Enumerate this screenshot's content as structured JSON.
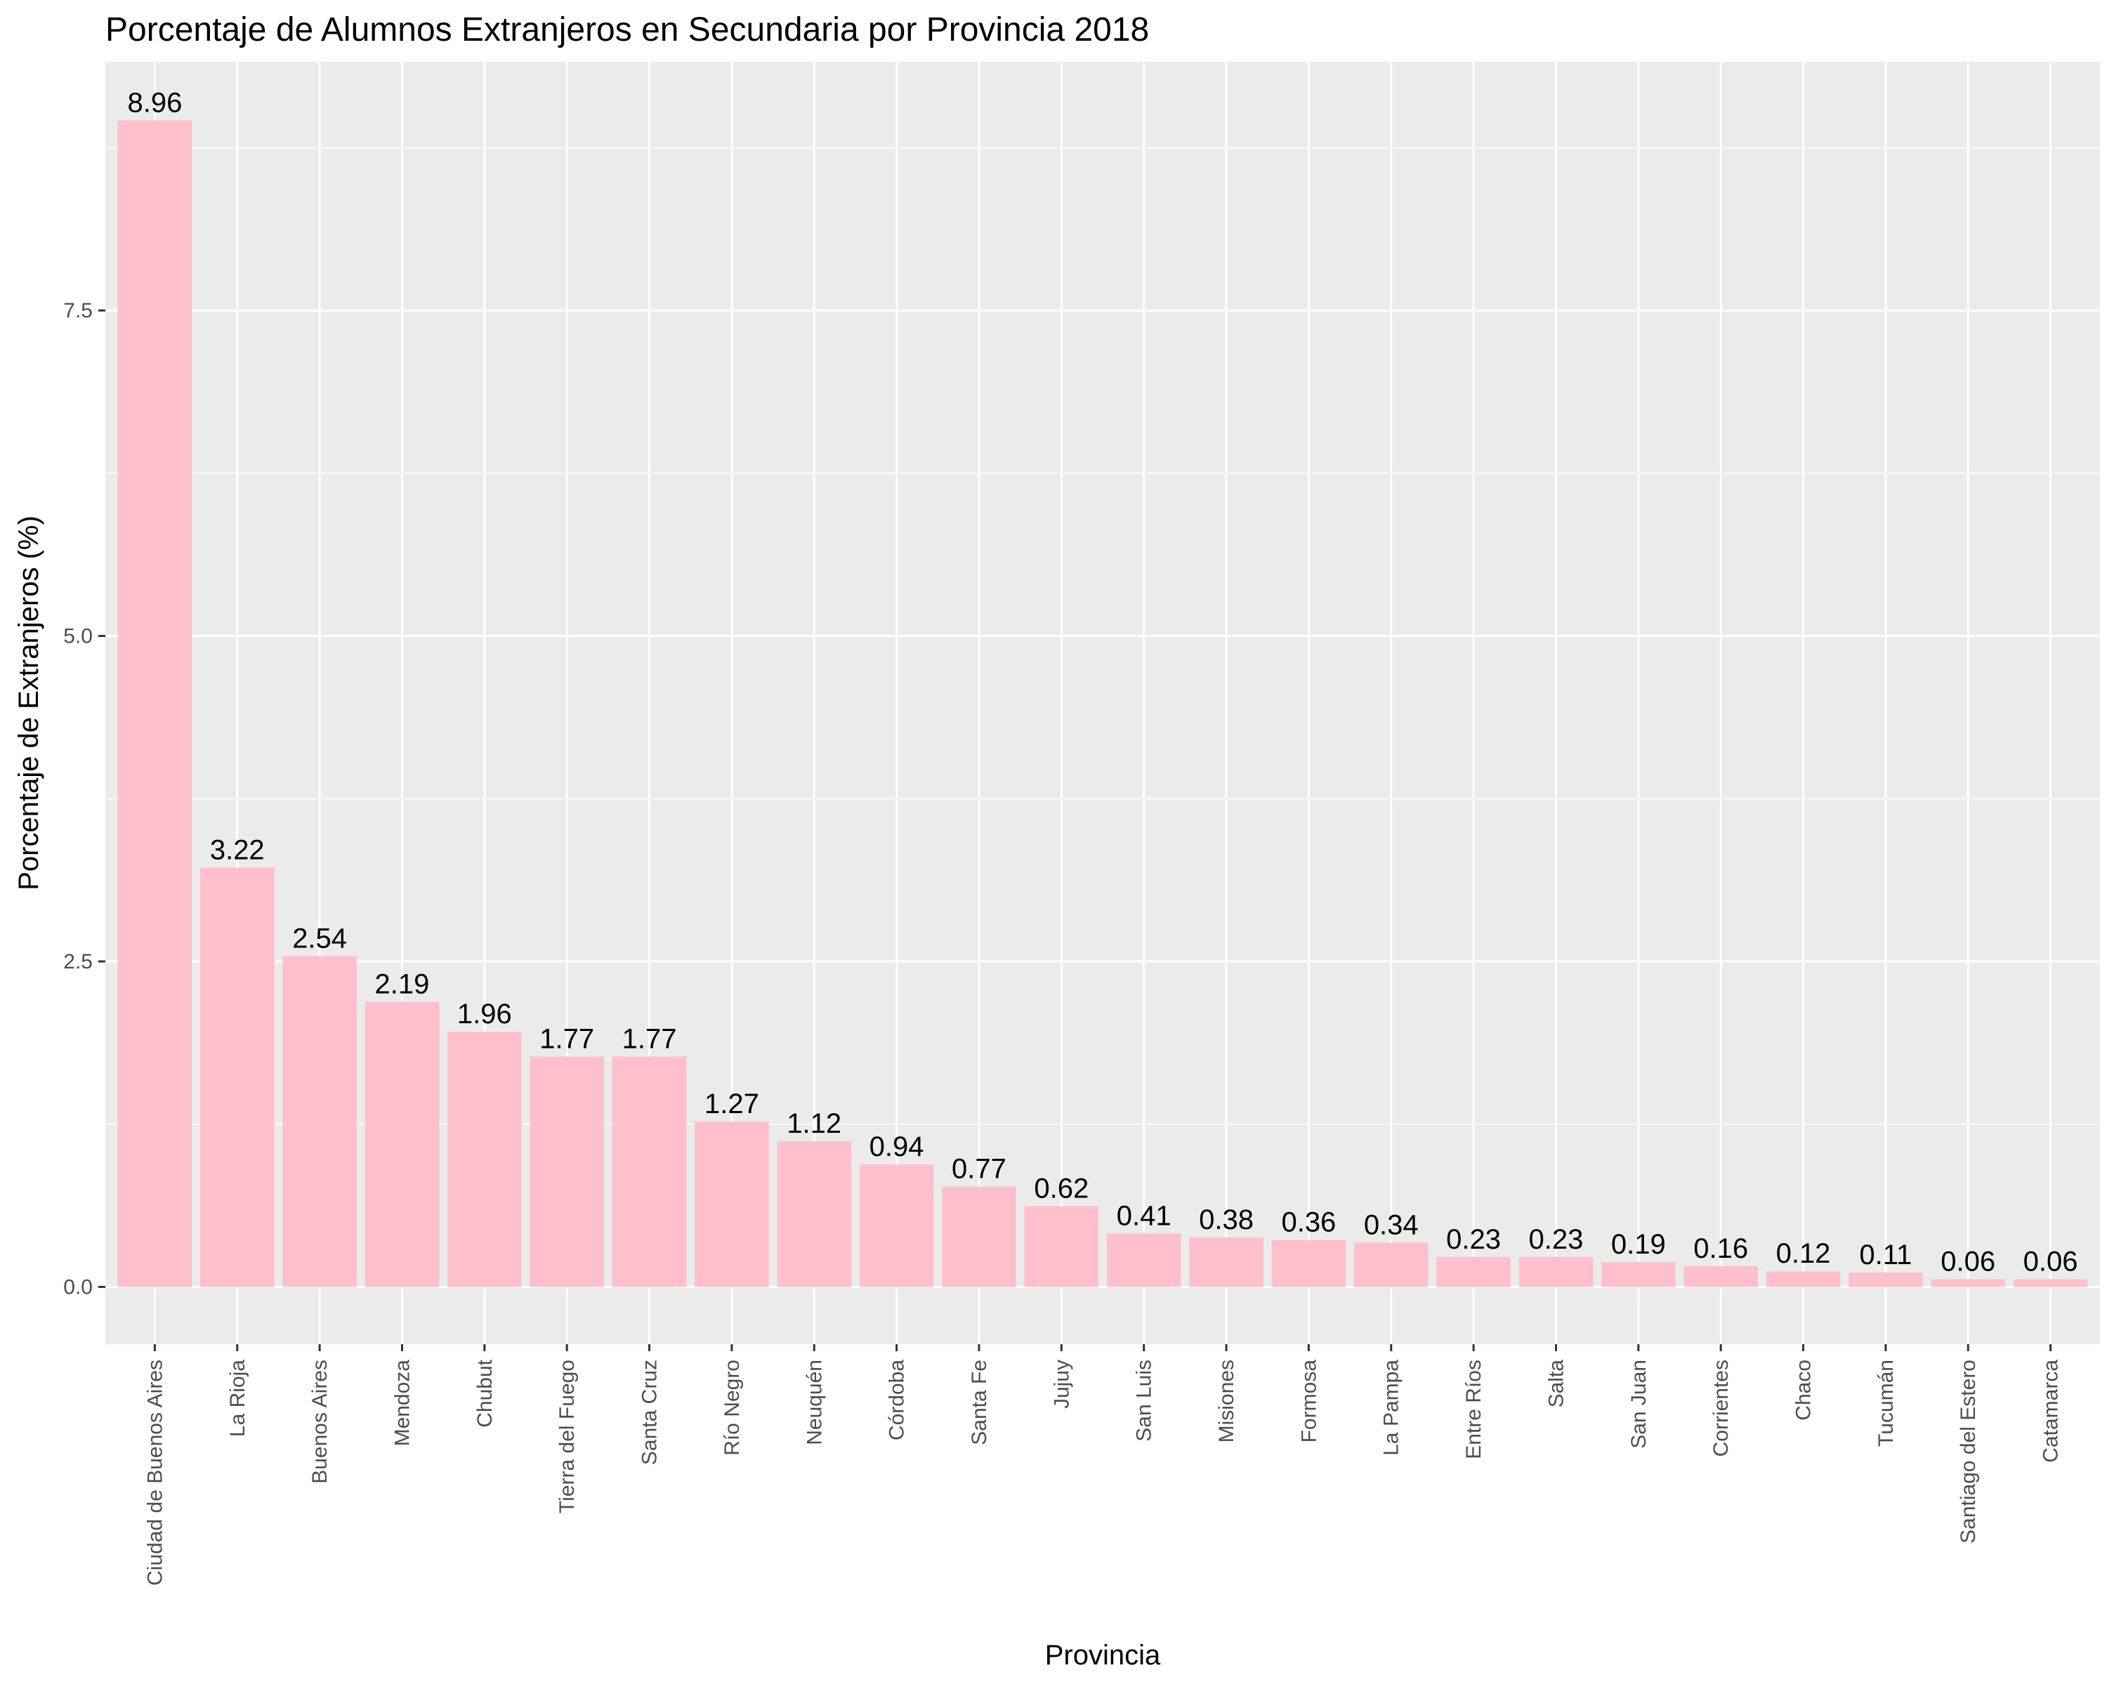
{
  "chart_data": {
    "type": "bar",
    "title": "Porcentaje de Alumnos Extranjeros en Secundaria por Provincia 2018",
    "xlabel": "Provincia",
    "ylabel": "Porcentaje de Extranjeros (%)",
    "ylim": [
      -0.44,
      9.41
    ],
    "yticks": [
      0.0,
      2.5,
      5.0,
      7.5
    ],
    "ytick_labels": [
      "0.0",
      "2.5",
      "5.0",
      "7.5"
    ],
    "grid": true,
    "legend": "none",
    "bar_color": "#ffc0cb",
    "panel_color": "#ebebeb",
    "categories": [
      "Ciudad de Buenos Aires",
      "La Rioja",
      "Buenos Aires",
      "Mendoza",
      "Chubut",
      "Tierra del Fuego",
      "Santa Cruz",
      "Río Negro",
      "Neuquén",
      "Córdoba",
      "Santa Fe",
      "Jujuy",
      "San Luis",
      "Misiones",
      "Formosa",
      "La Pampa",
      "Entre Ríos",
      "Salta",
      "San Juan",
      "Corrientes",
      "Chaco",
      "Tucumán",
      "Santiago del Estero",
      "Catamarca"
    ],
    "values": [
      8.96,
      3.22,
      2.54,
      2.19,
      1.96,
      1.77,
      1.77,
      1.27,
      1.12,
      0.94,
      0.77,
      0.62,
      0.41,
      0.38,
      0.36,
      0.34,
      0.23,
      0.23,
      0.19,
      0.16,
      0.12,
      0.11,
      0.06,
      0.06
    ],
    "data_labels": [
      "8.96",
      "3.22",
      "2.54",
      "2.19",
      "1.96",
      "1.77",
      "1.77",
      "1.27",
      "1.12",
      "0.94",
      "0.77",
      "0.62",
      "0.41",
      "0.38",
      "0.36",
      "0.34",
      "0.23",
      "0.23",
      "0.19",
      "0.16",
      "0.12",
      "0.11",
      "0.06",
      "0.06"
    ]
  }
}
